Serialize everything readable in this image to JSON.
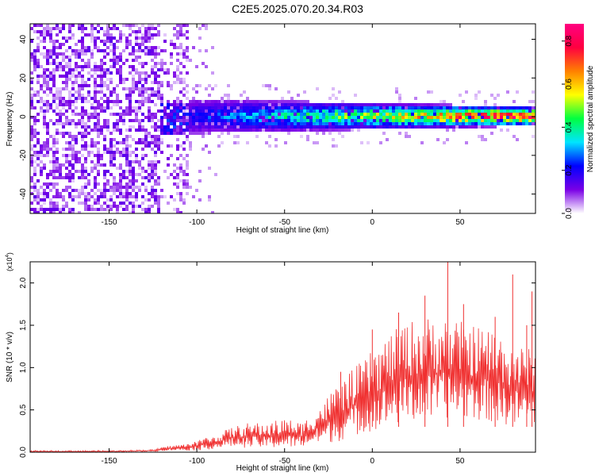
{
  "title": "C2E5.2025.070.20.34.R03",
  "chart_data": [
    {
      "type": "heatmap",
      "xlabel": "Height of straight line (km)",
      "ylabel": "Frequency (Hz)",
      "xlim": [
        -195,
        93
      ],
      "ylim": [
        -50,
        48
      ],
      "x_ticks": [
        -150,
        -100,
        -50,
        0,
        50
      ],
      "y_ticks": [
        -40,
        -20,
        0,
        20,
        40
      ],
      "colorbar": {
        "label": "Normalized spectral amplitude",
        "range": [
          0.0,
          0.88
        ],
        "ticks": [
          "0.0",
          "0.2",
          "0.4",
          "0.6",
          "0.8"
        ],
        "colormap": [
          "#ffffff",
          "#7a00e6",
          "#0000ff",
          "#00e5ff",
          "#00ff40",
          "#ffff00",
          "#ff8000",
          "#ff0040",
          "#ff0080"
        ]
      }
    },
    {
      "type": "line",
      "xlabel": "Height of straight line (km)",
      "ylabel": "SNR (10 * v/v)",
      "y_multiplier": "(x10",
      "y_multiplier_exp": "4",
      "y_multiplier_close": ")",
      "xlim": [
        -195,
        93
      ],
      "ylim": [
        0,
        2.25
      ],
      "x_ticks": [
        -150,
        -100,
        -50,
        0,
        50
      ],
      "y_ticks": [
        "0.0",
        "0.5",
        "1.0",
        "1.5",
        "2.0"
      ],
      "color": "#f03030",
      "envelope": {
        "x": [
          -195,
          -150,
          -125,
          -115,
          -105,
          -100,
          -90,
          -80,
          -70,
          -60,
          -50,
          -40,
          -30,
          -20,
          -10,
          0,
          10,
          20,
          30,
          40,
          50,
          60,
          70,
          80,
          93
        ],
        "min": [
          0,
          0,
          0.01,
          0.02,
          0.02,
          0.02,
          0.04,
          0.06,
          0.05,
          0.05,
          0.05,
          0.06,
          0.1,
          0.12,
          0.2,
          0.25,
          0.3,
          0.35,
          0.35,
          0.4,
          0.4,
          0.38,
          0.35,
          0.3,
          0.3
        ],
        "max": [
          0.02,
          0.02,
          0.03,
          0.08,
          0.1,
          0.15,
          0.2,
          0.3,
          0.35,
          0.35,
          0.4,
          0.35,
          0.55,
          0.8,
          1.0,
          1.2,
          1.4,
          1.55,
          1.6,
          1.6,
          1.55,
          1.5,
          1.45,
          1.3,
          1.2
        ]
      },
      "peaks": [
        {
          "x": -18,
          "y": 0.95
        },
        {
          "x": 0,
          "y": 1.45
        },
        {
          "x": 15,
          "y": 1.65
        },
        {
          "x": 30,
          "y": 1.85
        },
        {
          "x": 43,
          "y": 2.25
        },
        {
          "x": 52,
          "y": 1.75
        },
        {
          "x": 70,
          "y": 1.6
        },
        {
          "x": 80,
          "y": 2.1
        },
        {
          "x": 88,
          "y": 1.5
        },
        {
          "x": 91,
          "y": 1.9
        }
      ]
    }
  ]
}
